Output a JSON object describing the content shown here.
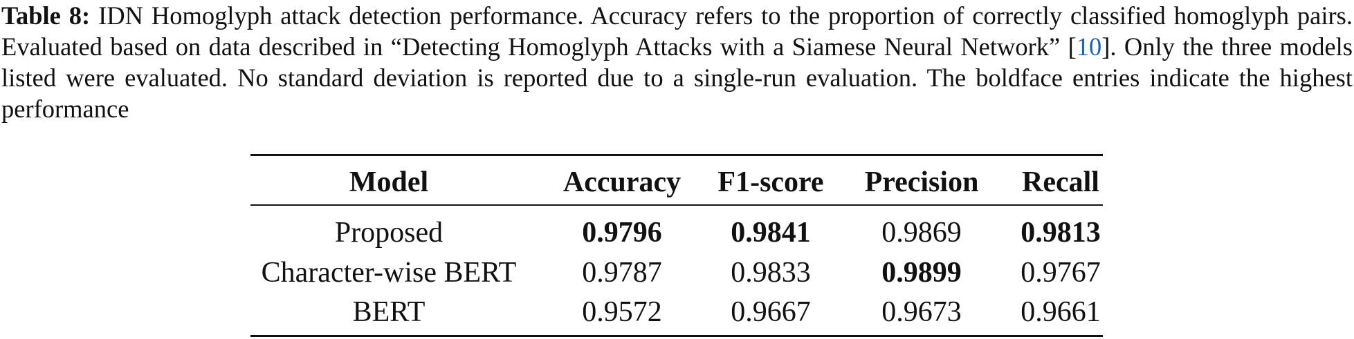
{
  "caption": {
    "label": "Table 8:",
    "text_before": "IDN Homoglyph attack detection performance. Accuracy refers to the proportion of correctly classified homoglyph pairs. Evaluated based on data described in “Detecting Homoglyph Attacks with a Siamese Neural Network” [",
    "citation": "10",
    "text_after": "]. Only the three models listed were evaluated. No standard deviation is reported due to a single-run evaluation. The boldface entries indicate the highest performance"
  },
  "table": {
    "header": [
      "Model",
      "Accuracy",
      "F1-score",
      "Precision",
      "Recall"
    ],
    "rows": [
      [
        "Proposed",
        "0.9796",
        "0.9841",
        "0.9869",
        "0.9813"
      ],
      [
        "Character-wise BERT",
        "0.9787",
        "0.9833",
        "0.9899",
        "0.9767"
      ],
      [
        "BERT",
        "0.9572",
        "0.9667",
        "0.9673",
        "0.9661"
      ]
    ],
    "bold_cells": [
      [
        0,
        1
      ],
      [
        0,
        2
      ],
      [
        0,
        4
      ],
      [
        1,
        3
      ]
    ]
  }
}
